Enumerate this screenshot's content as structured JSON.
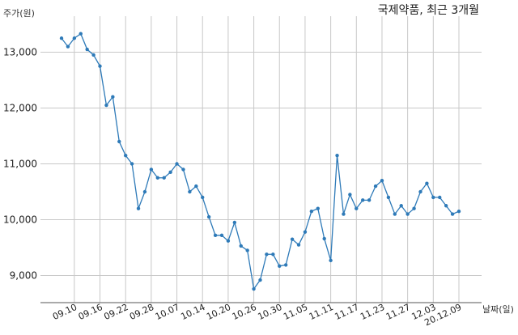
{
  "chart_data": {
    "type": "line",
    "title": "국제약품, 최근 3개월",
    "ylabel": "주가(원)",
    "xlabel": "날짜(일)",
    "ylim": [
      8500,
      13800
    ],
    "yticks": [
      9000,
      10000,
      11000,
      12000,
      13000
    ],
    "ytick_labels": [
      "9,000",
      "10,000",
      "11,000",
      "12,000",
      "13,000"
    ],
    "grid": true,
    "line_color": "#2e7ab8",
    "x_tick_labels": [
      "09.10",
      "09.16",
      "09.22",
      "09.28",
      "10.07",
      "10.14",
      "10.20",
      "10.26",
      "10.30",
      "11.05",
      "11.11",
      "11.17",
      "11.23",
      "11.27",
      "12.03",
      "20.12.09"
    ],
    "x_tick_indices": [
      2,
      6,
      10,
      14,
      18,
      22,
      26,
      30,
      34,
      38,
      42,
      46,
      50,
      54,
      58,
      62
    ],
    "series": [
      {
        "values": [
          13250,
          13100,
          13250,
          13330,
          13050,
          12950,
          12750,
          12050,
          12200,
          11400,
          11150,
          11000,
          10200,
          10500,
          10900,
          10750,
          10750,
          10850,
          11000,
          10900,
          10500,
          10600,
          10400,
          10050,
          9720,
          9720,
          9620,
          9950,
          9530,
          9450,
          8760,
          8920,
          9380,
          9380,
          9170,
          9190,
          9650,
          9550,
          9780,
          10150,
          10200,
          9660,
          9270,
          11150,
          10100,
          10450,
          10200,
          10350,
          10350,
          10600,
          10700,
          10400,
          10100,
          10250,
          10100,
          10200,
          10500,
          10650,
          10400,
          10400,
          10250,
          10100,
          10150
        ]
      }
    ]
  }
}
